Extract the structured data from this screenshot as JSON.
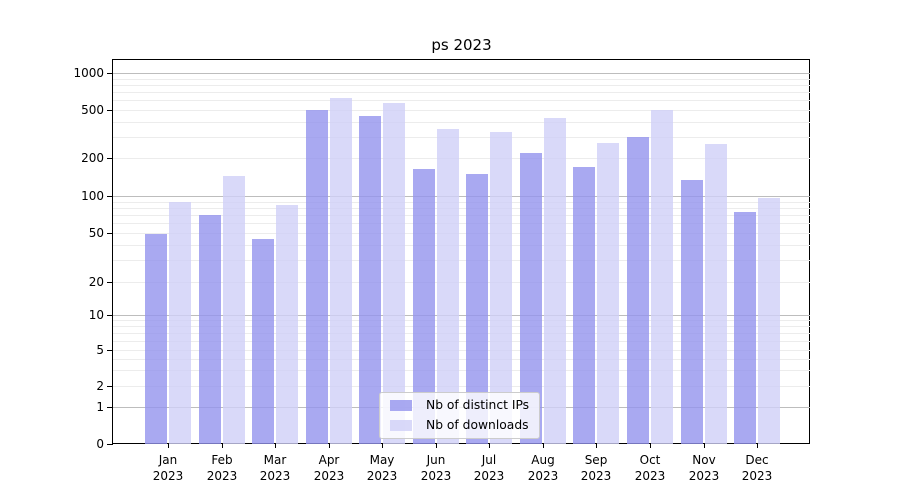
{
  "title": "ps 2023",
  "chart_data": {
    "type": "bar",
    "title": "ps 2023",
    "categories": [
      "Jan 2023",
      "Feb 2023",
      "Mar 2023",
      "Apr 2023",
      "May 2023",
      "Jun 2023",
      "Jul 2023",
      "Aug 2023",
      "Sep 2023",
      "Oct 2023",
      "Nov 2023",
      "Dec 2023"
    ],
    "series": [
      {
        "name": "Nb of distinct IPs",
        "color": "#9494ee",
        "values": [
          49,
          70,
          45,
          500,
          450,
          165,
          150,
          220,
          170,
          300,
          133,
          74
        ]
      },
      {
        "name": "Nb of downloads",
        "color": "#d0d0f8",
        "values": [
          90,
          145,
          84,
          630,
          570,
          345,
          330,
          430,
          265,
          500,
          262,
          96
        ]
      }
    ],
    "xlabel": "",
    "ylabel": "",
    "yscale": "log-symlog-to-zero",
    "ylim": [
      0,
      1000
    ],
    "yticks": [
      1000,
      500,
      200,
      100,
      50,
      20,
      10,
      5,
      2,
      1,
      0
    ],
    "grid": "on",
    "legend_position": "lower-center"
  }
}
